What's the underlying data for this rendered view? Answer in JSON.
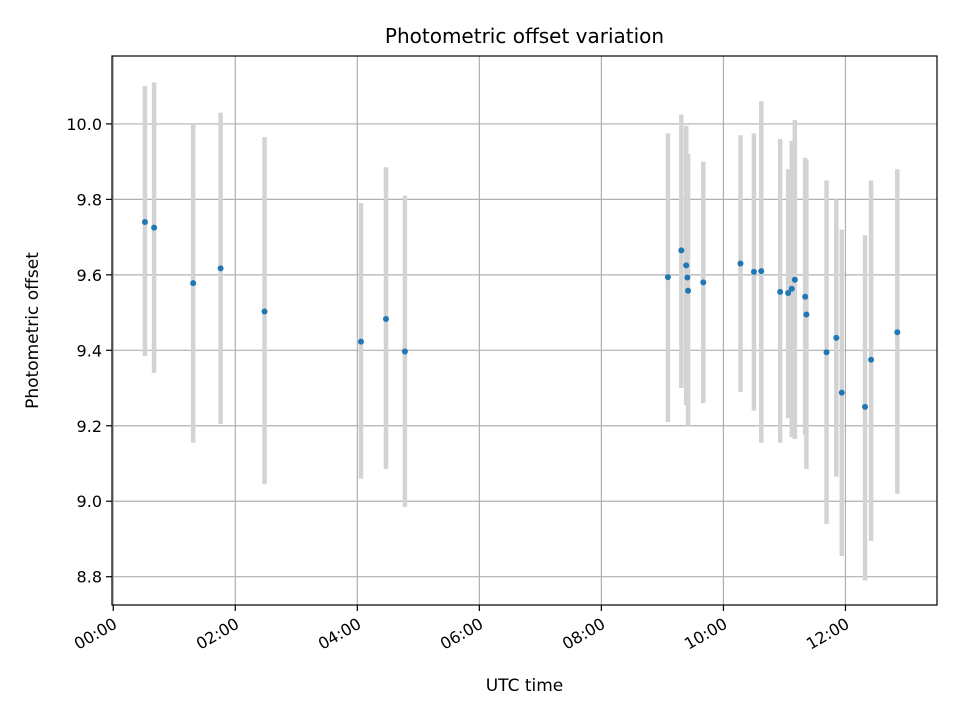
{
  "chart_data": {
    "type": "scatter",
    "title": "Photometric offset variation",
    "xlabel": "UTC time",
    "ylabel": "Photometric offset",
    "x_unit": "hours since 00:00 UTC",
    "xlim": [
      -0.02,
      13.5
    ],
    "ylim": [
      8.725,
      10.18
    ],
    "x_ticks": [
      0,
      2,
      4,
      6,
      8,
      10,
      12
    ],
    "x_tick_labels": [
      "00:00",
      "02:00",
      "04:00",
      "06:00",
      "08:00",
      "10:00",
      "12:00"
    ],
    "y_ticks": [
      8.8,
      9.0,
      9.2,
      9.4,
      9.6,
      9.8,
      10.0
    ],
    "y_tick_labels": [
      "8.8",
      "9.0",
      "9.2",
      "9.4",
      "9.6",
      "9.8",
      "10.0"
    ],
    "grid": true,
    "point_color": "#1f77b4",
    "errorbar_color": "#d3d3d3",
    "points": [
      {
        "x": 0.52,
        "y": 9.74,
        "ymin": 9.385,
        "ymax": 10.1
      },
      {
        "x": 0.67,
        "y": 9.725,
        "ymin": 9.34,
        "ymax": 10.11
      },
      {
        "x": 1.31,
        "y": 9.578,
        "ymin": 9.155,
        "ymax": 10.0
      },
      {
        "x": 1.76,
        "y": 9.617,
        "ymin": 9.205,
        "ymax": 10.03
      },
      {
        "x": 2.48,
        "y": 9.503,
        "ymin": 9.045,
        "ymax": 9.965
      },
      {
        "x": 4.06,
        "y": 9.423,
        "ymin": 9.06,
        "ymax": 9.79
      },
      {
        "x": 4.47,
        "y": 9.483,
        "ymin": 9.085,
        "ymax": 9.885
      },
      {
        "x": 4.78,
        "y": 9.397,
        "ymin": 8.985,
        "ymax": 9.81
      },
      {
        "x": 9.09,
        "y": 9.594,
        "ymin": 9.21,
        "ymax": 9.975
      },
      {
        "x": 9.31,
        "y": 9.665,
        "ymin": 9.3,
        "ymax": 10.025
      },
      {
        "x": 9.39,
        "y": 9.625,
        "ymin": 9.255,
        "ymax": 9.995
      },
      {
        "x": 9.41,
        "y": 9.593,
        "ymin": 9.265,
        "ymax": 9.92
      },
      {
        "x": 9.42,
        "y": 9.558,
        "ymin": 9.2,
        "ymax": 9.92
      },
      {
        "x": 9.67,
        "y": 9.58,
        "ymin": 9.26,
        "ymax": 9.9
      },
      {
        "x": 10.28,
        "y": 9.63,
        "ymin": 9.29,
        "ymax": 9.97
      },
      {
        "x": 10.5,
        "y": 9.608,
        "ymin": 9.24,
        "ymax": 9.975
      },
      {
        "x": 10.62,
        "y": 9.61,
        "ymin": 9.155,
        "ymax": 10.06
      },
      {
        "x": 10.93,
        "y": 9.555,
        "ymin": 9.155,
        "ymax": 9.96
      },
      {
        "x": 11.06,
        "y": 9.552,
        "ymin": 9.22,
        "ymax": 9.88
      },
      {
        "x": 11.12,
        "y": 9.563,
        "ymin": 9.17,
        "ymax": 9.955
      },
      {
        "x": 11.17,
        "y": 9.587,
        "ymin": 9.165,
        "ymax": 10.01
      },
      {
        "x": 11.34,
        "y": 9.542,
        "ymin": 9.175,
        "ymax": 9.91
      },
      {
        "x": 11.36,
        "y": 9.495,
        "ymin": 9.085,
        "ymax": 9.905
      },
      {
        "x": 11.69,
        "y": 9.395,
        "ymin": 8.94,
        "ymax": 9.85
      },
      {
        "x": 11.85,
        "y": 9.433,
        "ymin": 9.065,
        "ymax": 9.8
      },
      {
        "x": 11.94,
        "y": 9.288,
        "ymin": 8.855,
        "ymax": 9.72
      },
      {
        "x": 12.32,
        "y": 9.25,
        "ymin": 8.79,
        "ymax": 9.705
      },
      {
        "x": 12.42,
        "y": 9.375,
        "ymin": 8.895,
        "ymax": 9.85
      },
      {
        "x": 12.85,
        "y": 9.448,
        "ymin": 9.02,
        "ymax": 9.88
      }
    ]
  }
}
